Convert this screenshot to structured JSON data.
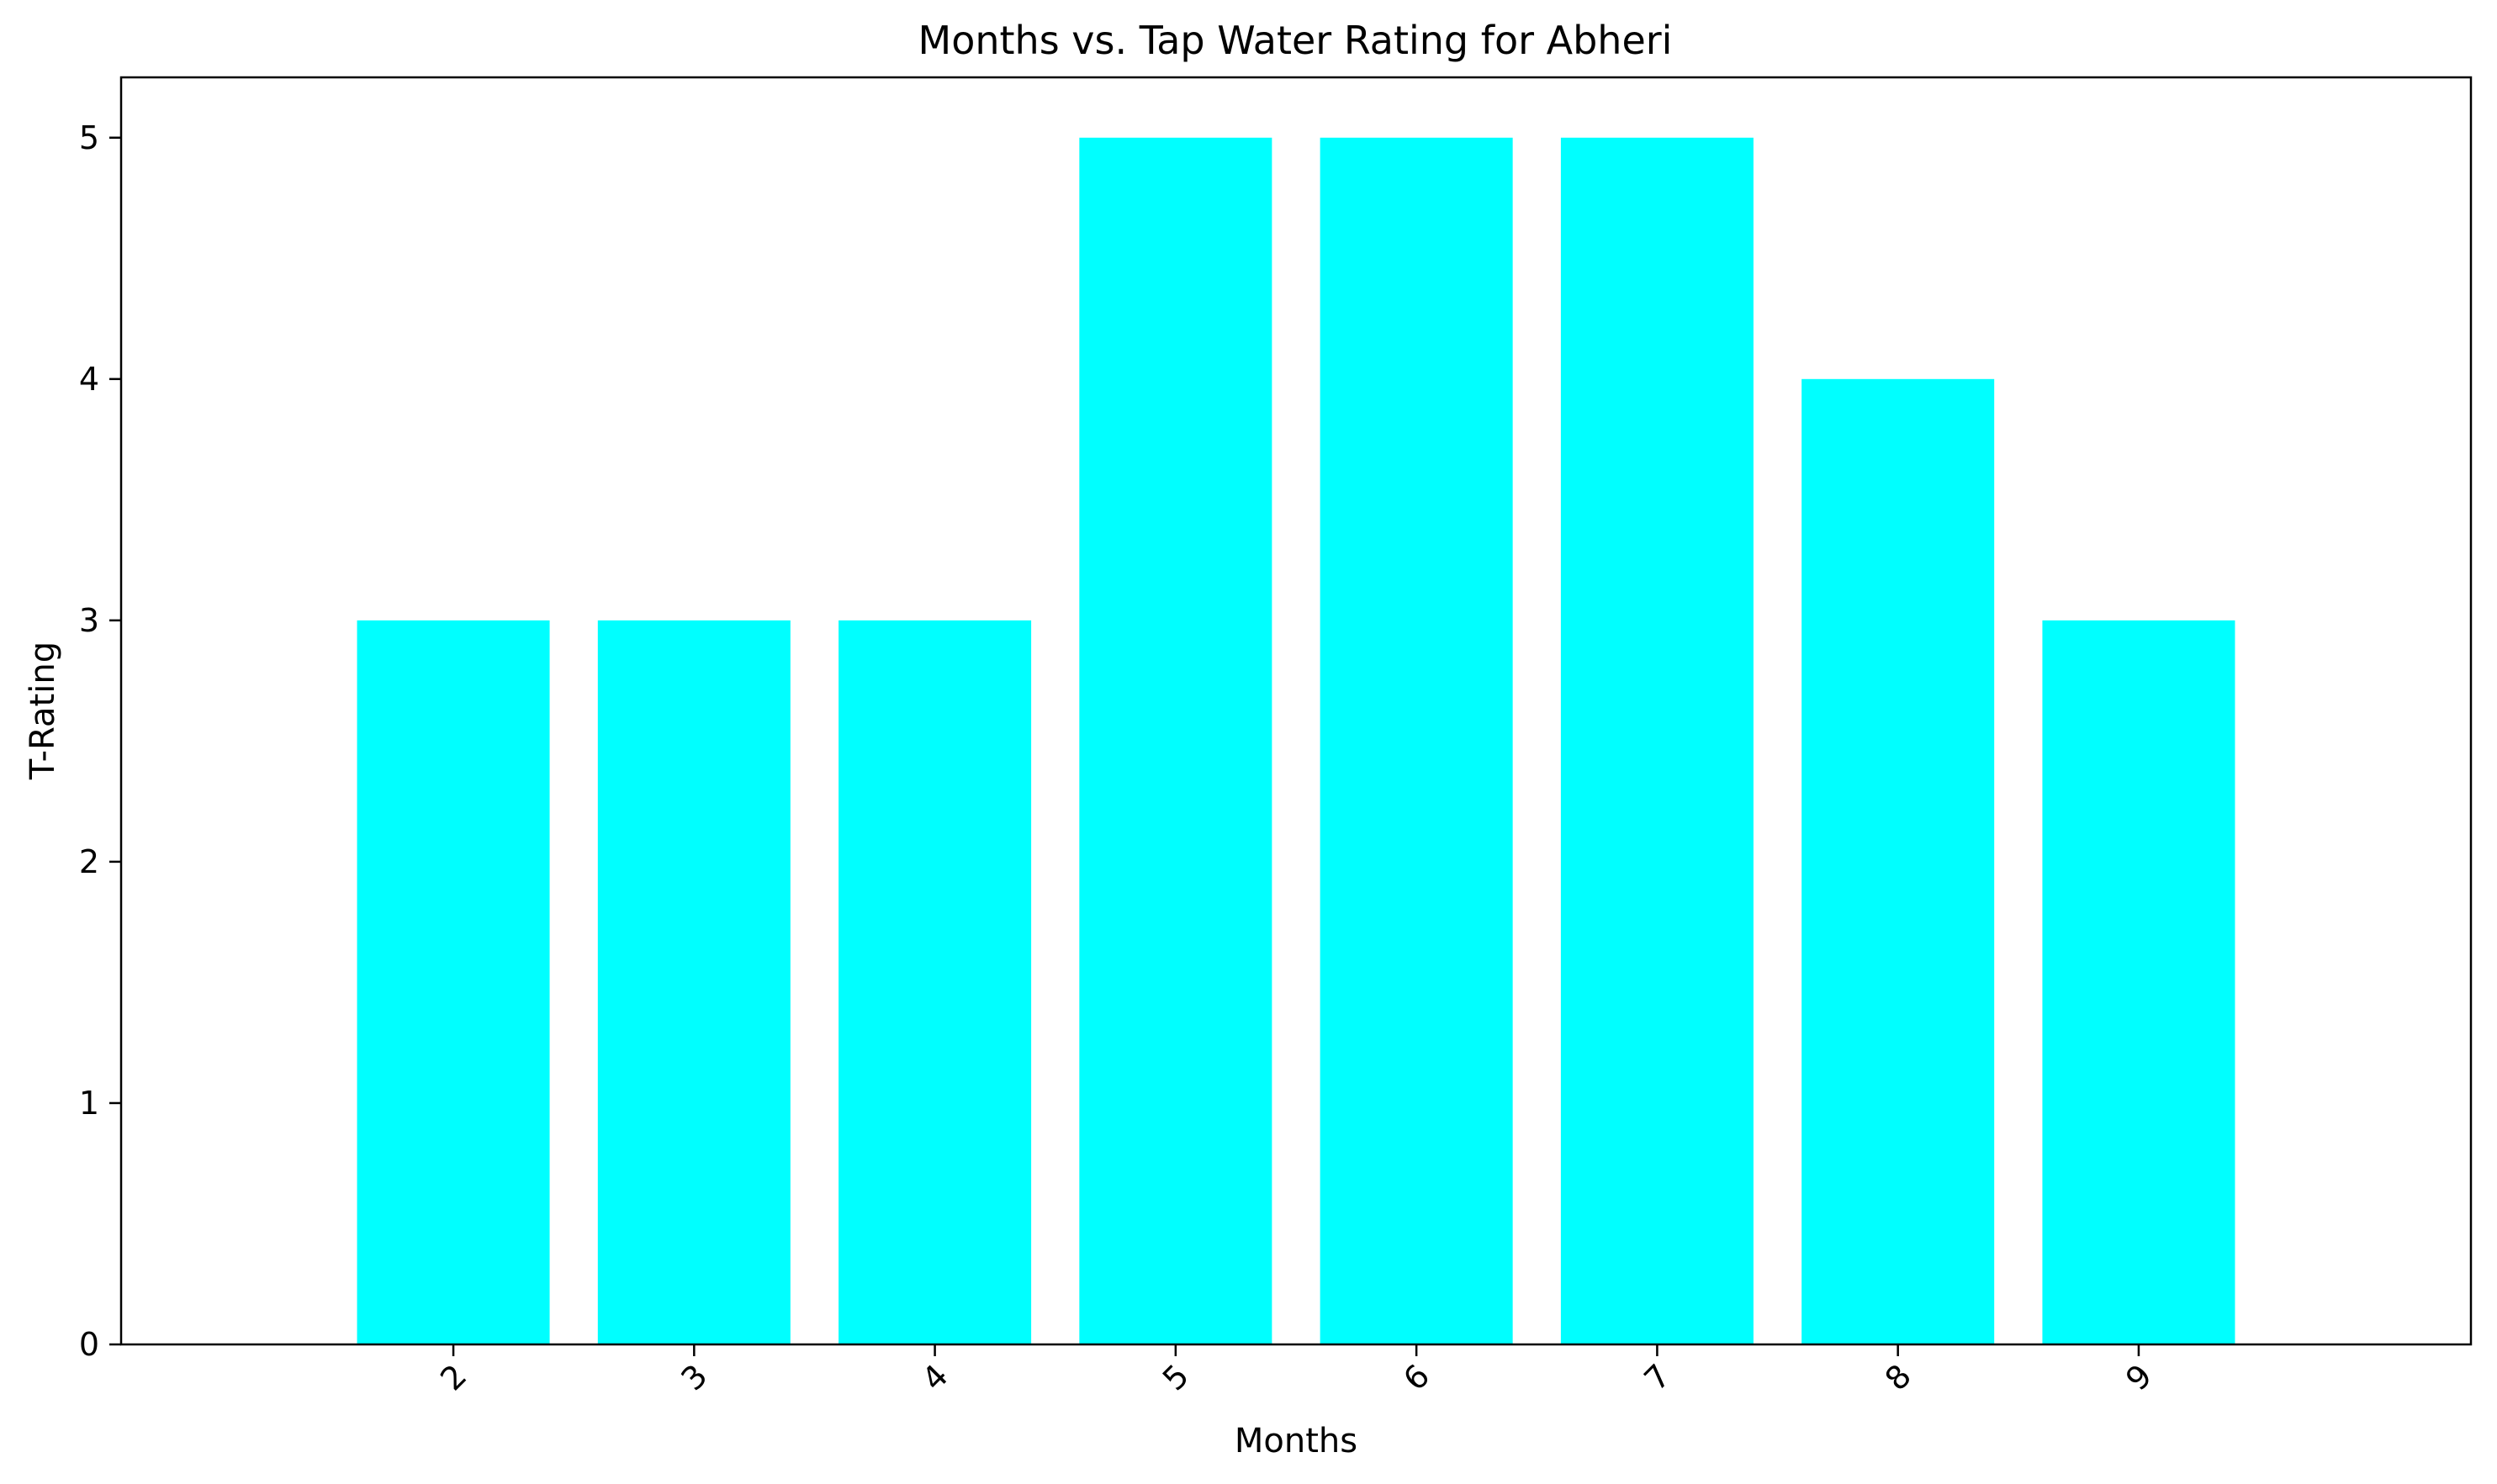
{
  "chart_data": {
    "type": "bar",
    "title": "Months vs. Tap Water Rating for Abheri",
    "xlabel": "Months",
    "ylabel": "T-Rating",
    "categories": [
      "2",
      "3",
      "4",
      "5",
      "6",
      "7",
      "8",
      "9"
    ],
    "values": [
      3,
      3,
      3,
      5,
      5,
      5,
      4,
      3
    ],
    "ylim": [
      0,
      5.25
    ],
    "yticks": [
      "0",
      "1",
      "2",
      "3",
      "4",
      "5"
    ],
    "bar_color": "#00ffff",
    "grid": false,
    "legend": false,
    "xtick_rotation": "45"
  }
}
